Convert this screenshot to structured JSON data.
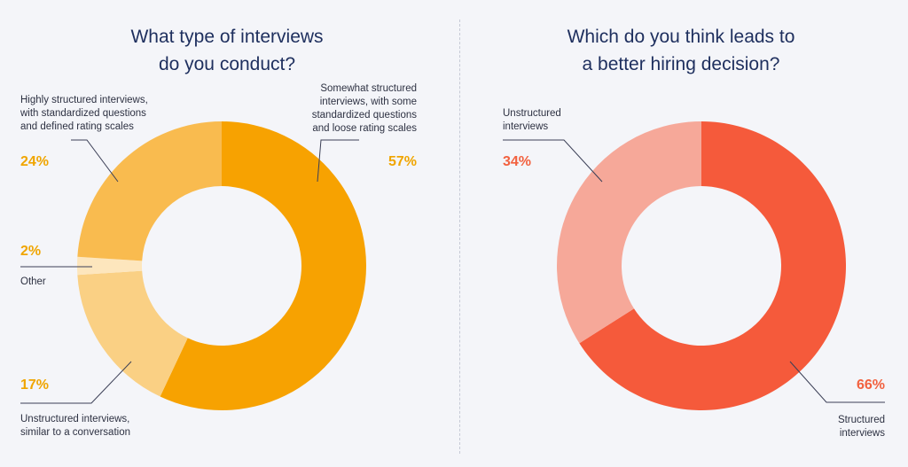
{
  "chart_data": [
    {
      "type": "pie",
      "title_lines": [
        "What type of interviews",
        "do you conduct?"
      ],
      "slices": [
        {
          "label_lines": [
            "Somewhat structured",
            "interviews, with some",
            "standardized questions",
            "and loose rating scales"
          ],
          "value": 57,
          "value_label": "57%",
          "color": "#f7a201",
          "label_color": "#f0a500"
        },
        {
          "label_lines": [
            "Unstructured interviews,",
            "similar to a conversation"
          ],
          "value": 17,
          "value_label": "17%",
          "color": "#fad084",
          "label_color": "#f0a500"
        },
        {
          "label_lines": [
            "Other"
          ],
          "value": 2,
          "value_label": "2%",
          "color": "#fde6bd",
          "label_color": "#f0a500"
        },
        {
          "label_lines": [
            "Highly structured interviews,",
            "with standardized questions",
            "and defined rating scales"
          ],
          "value": 24,
          "value_label": "24%",
          "color": "#f9bb4f",
          "label_color": "#f0a500"
        }
      ]
    },
    {
      "type": "pie",
      "title_lines": [
        "Which do you think leads to",
        "a better hiring decision?"
      ],
      "slices": [
        {
          "label_lines": [
            "Structured",
            "interviews"
          ],
          "value": 66,
          "value_label": "66%",
          "color": "#f55a3b",
          "label_color": "#f2613f"
        },
        {
          "label_lines": [
            "Unstructured",
            "interviews"
          ],
          "value": 34,
          "value_label": "34%",
          "color": "#f6a899",
          "label_color": "#f2613f"
        }
      ]
    }
  ]
}
